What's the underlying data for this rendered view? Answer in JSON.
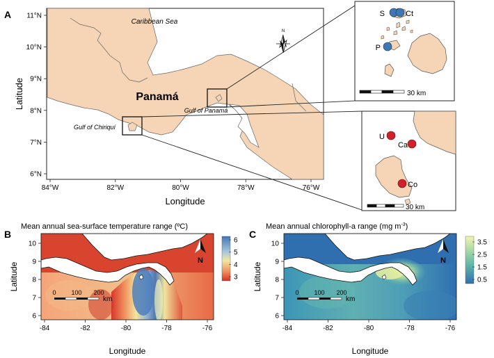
{
  "panel_a": {
    "label": "A",
    "country": "Panamá",
    "sea": "Caribbean Sea",
    "gulf_panama": "Gulf of Panamá",
    "gulf_chiriqui": "Gulf of Chiriquí",
    "xlabel": "Longitude",
    "ylabel": "Latitude",
    "xticks": [
      "84°W",
      "82°W",
      "80°W",
      "78°W",
      "76°W"
    ],
    "yticks": [
      "11°N",
      "10°N",
      "9°N",
      "8°N",
      "7°N",
      "6°N"
    ],
    "north": "N",
    "colors": {
      "land": "#f5d5b5",
      "sea": "#ffffff"
    }
  },
  "inset_pearl": {
    "sites": [
      {
        "code": "S",
        "color": "#3e78b4"
      },
      {
        "code": "Ct",
        "color": "#3e78b4"
      },
      {
        "code": "P",
        "color": "#3e78b4"
      }
    ],
    "scale": "30 km"
  },
  "inset_coiba": {
    "sites": [
      {
        "code": "U",
        "color": "#d0202a"
      },
      {
        "code": "Ca",
        "color": "#d0202a"
      },
      {
        "code": "Co",
        "color": "#d0202a"
      }
    ],
    "scale": "30 km"
  },
  "panel_b": {
    "label": "B",
    "title": "Mean annual sea-surface temperature range (ºC)",
    "xlabel": "Longitude",
    "ylabel": "Latitude",
    "xticks": [
      "-84",
      "-82",
      "-80",
      "-78",
      "-76"
    ],
    "yticks": [
      "10",
      "9",
      "8",
      "7",
      "6"
    ],
    "legend": [
      "6",
      "5",
      "4",
      "3"
    ],
    "scale_ticks": [
      "0",
      "100",
      "200"
    ],
    "scale_unit": "km",
    "north": "N",
    "colors": {
      "low": "#d73027",
      "mid": "#f2e8a0",
      "high": "#4575b4"
    }
  },
  "panel_c": {
    "label": "C",
    "title": "Mean annual chlorophyll-a range (mg m",
    "title_sup": "-3",
    "title_end": ")",
    "xlabel": "Longitude",
    "ylabel": "Latitude",
    "xticks": [
      "-84",
      "-82",
      "-80",
      "-78",
      "-76"
    ],
    "yticks": [
      "10",
      "9",
      "8",
      "7",
      "6"
    ],
    "legend": [
      "3.5",
      "2.5",
      "1.5",
      "0.5"
    ],
    "scale_ticks": [
      "0",
      "100",
      "200"
    ],
    "scale_unit": "km",
    "north": "N",
    "colors": {
      "low": "#2f6fb0",
      "mid": "#5fb8a8",
      "high": "#eef0a0"
    }
  }
}
